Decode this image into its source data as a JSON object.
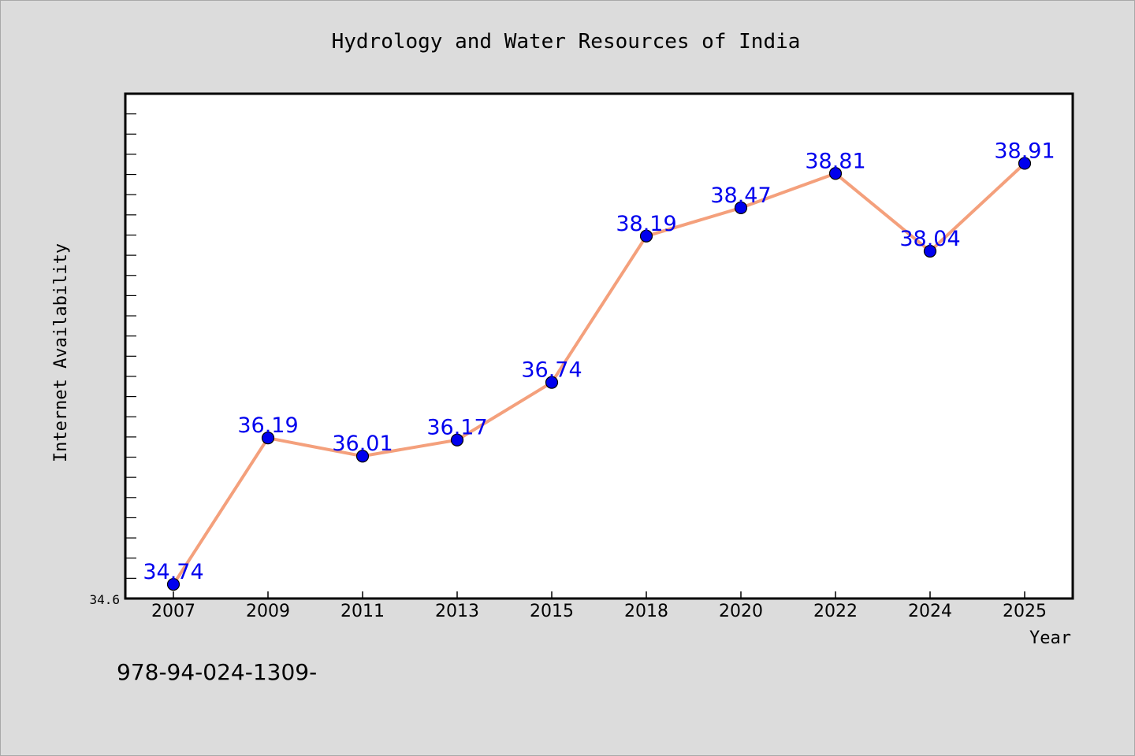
{
  "chart_data": {
    "type": "line",
    "title": "Hydrology and Water Resources of India",
    "xlabel": "Year",
    "ylabel": "Internet Availability",
    "categories": [
      "2007",
      "2009",
      "2011",
      "2013",
      "2015",
      "2018",
      "2020",
      "2022",
      "2024",
      "2025"
    ],
    "series": [
      {
        "values": [
          34.74,
          36.19,
          36.01,
          36.17,
          36.74,
          38.19,
          38.47,
          38.81,
          38.04,
          38.91
        ]
      }
    ],
    "data_labels": [
      "34.74",
      "36.19",
      "36.01",
      "36.17",
      "36.74",
      "38.19",
      "38.47",
      "38.81",
      "38.04",
      "38.91"
    ],
    "ylim": [
      34.6,
      39.6
    ],
    "y_tick_labels": [
      "34.6"
    ],
    "grid": false,
    "line_color": "#f4a07c",
    "marker_color": "#0000ee",
    "label_color": "#0000ee"
  },
  "footer": {
    "isbn": "978-94-024-1309-"
  }
}
